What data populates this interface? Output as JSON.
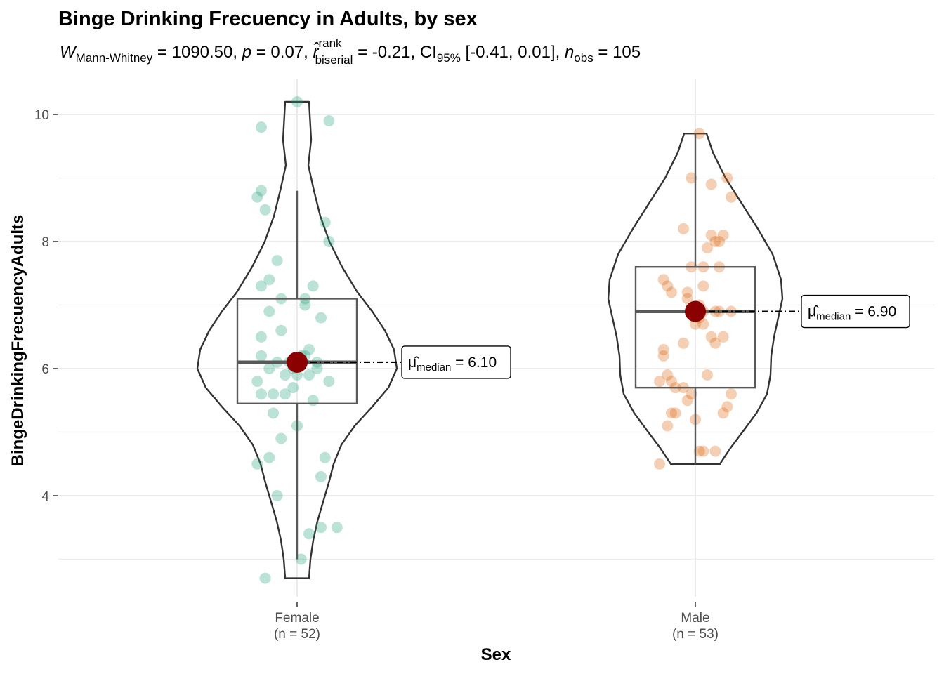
{
  "chart_data": {
    "type": "violin",
    "title": "Binge Drinking Frecuency in Adults, by sex",
    "subtitle": {
      "stat_symbol": "W",
      "stat_sub": "Mann-Whitney",
      "stat_value": " = 1090.50, ",
      "p_symbol": "p",
      "p_value": " = 0.07, ",
      "r_symbol": "r̂",
      "r_sup": "rank",
      "r_sub": "biserial",
      "r_value": " = -0.21, ",
      "ci_symbol": "CI",
      "ci_sub": "95%",
      "ci_value": " [-0.41, 0.01], ",
      "n_symbol": "n",
      "n_sub": "obs",
      "n_value": " = 105"
    },
    "xlabel": "Sex",
    "ylabel": "BingeDrinkingFrecuencyAdults",
    "ylim": [
      2.3,
      10.6
    ],
    "y_ticks": [
      4,
      6,
      8,
      10
    ],
    "y_tick_labels": [
      "4",
      "6",
      "8",
      "10"
    ],
    "grid": true,
    "groups": [
      {
        "name": "Female",
        "n_label": "(n = 52)",
        "color": "#1b9e77",
        "stats": {
          "min": 3.0,
          "q1": 5.45,
          "median": 6.1,
          "q3": 7.1,
          "max": 8.8
        },
        "violin_range": [
          2.7,
          10.2
        ],
        "median_label": {
          "symbol": "μ̂",
          "sub": "median",
          "text": " = 6.10"
        },
        "outliers": [
          9.8,
          9.9,
          10.2,
          2.7
        ],
        "points": [
          [
            0.0,
            10.2
          ],
          [
            -0.09,
            9.8
          ],
          [
            0.08,
            9.9
          ],
          [
            -0.09,
            8.8
          ],
          [
            -0.1,
            8.7
          ],
          [
            -0.08,
            8.5
          ],
          [
            0.07,
            8.3
          ],
          [
            0.08,
            8.0
          ],
          [
            -0.05,
            7.7
          ],
          [
            -0.07,
            7.4
          ],
          [
            -0.09,
            7.3
          ],
          [
            0.04,
            7.3
          ],
          [
            -0.04,
            7.1
          ],
          [
            0.02,
            7.1
          ],
          [
            0.02,
            7.0
          ],
          [
            -0.07,
            6.9
          ],
          [
            0.06,
            6.8
          ],
          [
            -0.04,
            6.6
          ],
          [
            -0.09,
            6.5
          ],
          [
            0.03,
            6.3
          ],
          [
            -0.09,
            6.2
          ],
          [
            0.01,
            6.2
          ],
          [
            -0.05,
            6.1
          ],
          [
            -0.02,
            6.1
          ],
          [
            0.05,
            6.0
          ],
          [
            -0.07,
            6.0
          ],
          [
            -0.03,
            5.9
          ],
          [
            0.0,
            5.9
          ],
          [
            0.03,
            5.9
          ],
          [
            -0.1,
            5.8
          ],
          [
            0.08,
            5.8
          ],
          [
            -0.01,
            5.7
          ],
          [
            -0.09,
            5.6
          ],
          [
            -0.03,
            5.6
          ],
          [
            0.04,
            5.5
          ],
          [
            -0.06,
            5.3
          ],
          [
            0.0,
            5.1
          ],
          [
            -0.04,
            4.9
          ],
          [
            0.07,
            4.6
          ],
          [
            -0.07,
            4.6
          ],
          [
            -0.1,
            4.5
          ],
          [
            0.06,
            4.3
          ],
          [
            -0.05,
            4.0
          ],
          [
            0.03,
            3.4
          ],
          [
            0.1,
            3.5
          ],
          [
            0.01,
            3.0
          ],
          [
            -0.08,
            2.7
          ],
          [
            0.02,
            6.2
          ],
          [
            -0.01,
            6.0
          ],
          [
            0.05,
            6.1
          ],
          [
            -0.06,
            5.6
          ],
          [
            0.06,
            3.5
          ]
        ]
      },
      {
        "name": "Male",
        "n_label": "(n = 53)",
        "color": "#d95f02",
        "stats": {
          "min": 4.5,
          "q1": 5.7,
          "median": 6.9,
          "q3": 7.6,
          "max": 9.7
        },
        "violin_range": [
          4.5,
          9.7
        ],
        "median_label": {
          "symbol": "μ̂",
          "sub": "median",
          "text": " = 6.90"
        },
        "outliers": [
          4.5,
          9.7
        ],
        "points": [
          [
            0.01,
            9.7
          ],
          [
            -0.01,
            9.0
          ],
          [
            0.08,
            9.0
          ],
          [
            0.04,
            8.9
          ],
          [
            0.09,
            8.7
          ],
          [
            -0.03,
            8.2
          ],
          [
            0.04,
            8.1
          ],
          [
            0.07,
            8.1
          ],
          [
            0.05,
            8.0
          ],
          [
            0.06,
            8.0
          ],
          [
            0.03,
            7.9
          ],
          [
            -0.01,
            7.6
          ],
          [
            0.02,
            7.6
          ],
          [
            0.06,
            7.6
          ],
          [
            -0.08,
            7.4
          ],
          [
            -0.07,
            7.3
          ],
          [
            0.02,
            7.3
          ],
          [
            -0.06,
            7.2
          ],
          [
            -0.02,
            7.2
          ],
          [
            -0.02,
            7.1
          ],
          [
            0.01,
            7.0
          ],
          [
            0.02,
            6.9
          ],
          [
            0.05,
            6.9
          ],
          [
            0.09,
            6.9
          ],
          [
            0.06,
            6.9
          ],
          [
            0.01,
            6.8
          ],
          [
            0.0,
            6.7
          ],
          [
            0.02,
            6.7
          ],
          [
            0.04,
            6.5
          ],
          [
            0.07,
            6.5
          ],
          [
            -0.03,
            6.4
          ],
          [
            0.05,
            6.4
          ],
          [
            -0.08,
            6.3
          ],
          [
            -0.08,
            6.2
          ],
          [
            -0.07,
            5.9
          ],
          [
            0.03,
            5.9
          ],
          [
            -0.09,
            5.8
          ],
          [
            -0.06,
            5.8
          ],
          [
            -0.05,
            5.7
          ],
          [
            -0.03,
            5.7
          ],
          [
            -0.01,
            5.6
          ],
          [
            0.09,
            5.6
          ],
          [
            -0.02,
            5.5
          ],
          [
            0.08,
            5.4
          ],
          [
            -0.05,
            5.3
          ],
          [
            -0.06,
            5.3
          ],
          [
            0.07,
            5.3
          ],
          [
            0.0,
            5.2
          ],
          [
            -0.07,
            5.1
          ],
          [
            0.01,
            4.7
          ],
          [
            0.05,
            4.7
          ],
          [
            -0.09,
            4.5
          ],
          [
            0.02,
            4.7
          ]
        ]
      }
    ]
  }
}
